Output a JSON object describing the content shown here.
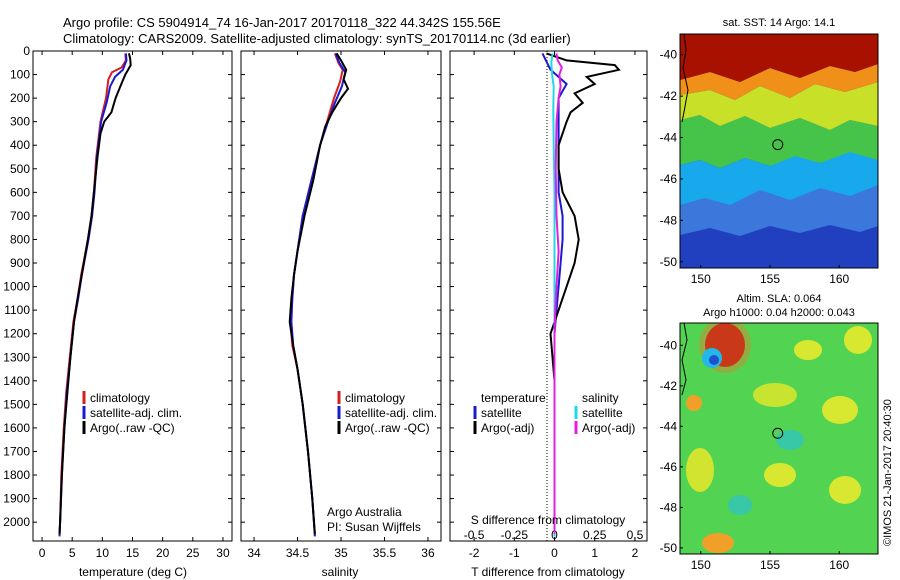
{
  "header": {
    "line1": "Argo profile: CS 5904914_74 16-Jan-2017 20170118_322 44.342S 155.56E",
    "line2": "Climatology: CARS2009. Satellite-adjusted climatology: synTS_20170114.nc (3d earlier)"
  },
  "footer": {
    "watermark": "©IMOS 21-Jan-2017 20:40:30"
  },
  "colors": {
    "climatology": "#d42020",
    "satellite": "#1a1ad0",
    "argo": "#000000",
    "sat_salinity": "#22d8e8",
    "argo_salinity_diff": "#e020e0"
  },
  "chart_data": [
    {
      "type": "line",
      "panel": "temperature",
      "xlabel": "temperature (deg C)",
      "ylabel": "",
      "xlim": [
        -1.5,
        31.5
      ],
      "ylim": [
        2080,
        0
      ],
      "xticks": [
        0,
        5,
        10,
        15,
        20,
        25,
        30
      ],
      "yticks": [
        0,
        100,
        200,
        300,
        400,
        500,
        600,
        700,
        800,
        900,
        1000,
        1100,
        1200,
        1300,
        1400,
        1500,
        1600,
        1700,
        1800,
        1900,
        2000
      ],
      "legend": [
        "climatology",
        "satellite-adj. clim.",
        "Argo(..raw -QC)"
      ],
      "series": [
        {
          "name": "climatology",
          "color": "#d42020",
          "points": [
            [
              13.8,
              10
            ],
            [
              13.9,
              40
            ],
            [
              13.2,
              70
            ],
            [
              11.6,
              90
            ],
            [
              11.0,
              120
            ],
            [
              10.6,
              200
            ],
            [
              9.7,
              300
            ],
            [
              9.0,
              450
            ],
            [
              8.6,
              600
            ],
            [
              8.2,
              700
            ],
            [
              7.6,
              800
            ],
            [
              6.5,
              950
            ],
            [
              5.9,
              1050
            ],
            [
              5.2,
              1150
            ],
            [
              4.6,
              1300
            ],
            [
              4.0,
              1450
            ],
            [
              3.6,
              1600
            ],
            [
              3.2,
              1800
            ],
            [
              3.0,
              2000
            ],
            [
              2.9,
              2060
            ]
          ]
        },
        {
          "name": "satellite-adj. clim.",
          "color": "#1a1ad0",
          "points": [
            [
              13.9,
              10
            ],
            [
              14.0,
              40
            ],
            [
              13.4,
              80
            ],
            [
              12.1,
              110
            ],
            [
              11.3,
              150
            ],
            [
              10.7,
              220
            ],
            [
              9.8,
              300
            ],
            [
              9.1,
              450
            ],
            [
              8.7,
              600
            ],
            [
              8.3,
              700
            ],
            [
              7.7,
              800
            ],
            [
              6.6,
              950
            ],
            [
              6.0,
              1050
            ],
            [
              5.3,
              1150
            ],
            [
              4.7,
              1300
            ],
            [
              4.1,
              1450
            ],
            [
              3.7,
              1600
            ],
            [
              3.3,
              1800
            ],
            [
              3.0,
              2000
            ],
            [
              2.9,
              2060
            ]
          ]
        },
        {
          "name": "Argo(..raw -QC)",
          "color": "#000000",
          "points": [
            [
              14.4,
              10
            ],
            [
              14.6,
              30
            ],
            [
              14.7,
              60
            ],
            [
              13.8,
              100
            ],
            [
              13.0,
              150
            ],
            [
              12.2,
              200
            ],
            [
              11.5,
              260
            ],
            [
              10.3,
              300
            ],
            [
              9.7,
              350
            ],
            [
              9.2,
              450
            ],
            [
              8.6,
              600
            ],
            [
              8.2,
              700
            ],
            [
              7.6,
              800
            ],
            [
              6.6,
              950
            ],
            [
              5.9,
              1050
            ],
            [
              5.3,
              1150
            ],
            [
              4.7,
              1300
            ],
            [
              4.2,
              1450
            ],
            [
              3.7,
              1600
            ],
            [
              3.3,
              1800
            ],
            [
              3.0,
              2000
            ],
            [
              2.9,
              2050
            ]
          ]
        }
      ]
    },
    {
      "type": "line",
      "panel": "salinity",
      "xlabel": "salinity",
      "ylabel": "",
      "xlim": [
        33.85,
        36.15
      ],
      "ylim": [
        2080,
        0
      ],
      "xticks": [
        34,
        34.5,
        35,
        35.5,
        36
      ],
      "legend": [
        "climatology",
        "satellite-adj. clim.",
        "Argo(..raw -QC)"
      ],
      "annotations": [
        "Argo Australia",
        "PI: Susan Wijffels"
      ],
      "series": [
        {
          "name": "climatology",
          "color": "#d42020",
          "points": [
            [
              34.93,
              10
            ],
            [
              34.97,
              50
            ],
            [
              35.02,
              80
            ],
            [
              34.99,
              130
            ],
            [
              34.92,
              200
            ],
            [
              34.84,
              300
            ],
            [
              34.76,
              400
            ],
            [
              34.66,
              550
            ],
            [
              34.56,
              700
            ],
            [
              34.5,
              850
            ],
            [
              34.46,
              950
            ],
            [
              34.44,
              1050
            ],
            [
              34.42,
              1150
            ],
            [
              34.44,
              1250
            ],
            [
              34.5,
              1350
            ],
            [
              34.56,
              1500
            ],
            [
              34.62,
              1700
            ],
            [
              34.67,
              1900
            ],
            [
              34.7,
              2060
            ]
          ]
        },
        {
          "name": "satellite-adj. clim.",
          "color": "#1a1ad0",
          "points": [
            [
              34.94,
              10
            ],
            [
              34.98,
              50
            ],
            [
              35.05,
              90
            ],
            [
              35.01,
              150
            ],
            [
              34.93,
              220
            ],
            [
              34.85,
              300
            ],
            [
              34.76,
              400
            ],
            [
              34.66,
              550
            ],
            [
              34.56,
              700
            ],
            [
              34.5,
              850
            ],
            [
              34.46,
              950
            ],
            [
              34.44,
              1050
            ],
            [
              34.43,
              1150
            ],
            [
              34.45,
              1250
            ],
            [
              34.5,
              1350
            ],
            [
              34.56,
              1500
            ],
            [
              34.62,
              1700
            ],
            [
              34.67,
              1900
            ],
            [
              34.7,
              2060
            ]
          ]
        },
        {
          "name": "Argo(..raw -QC)",
          "color": "#000000",
          "points": [
            [
              34.95,
              10
            ],
            [
              35.0,
              40
            ],
            [
              35.06,
              80
            ],
            [
              35.03,
              120
            ],
            [
              35.08,
              160
            ],
            [
              35.0,
              200
            ],
            [
              34.9,
              260
            ],
            [
              34.82,
              320
            ],
            [
              34.76,
              400
            ],
            [
              34.68,
              550
            ],
            [
              34.58,
              700
            ],
            [
              34.5,
              850
            ],
            [
              34.46,
              950
            ],
            [
              34.43,
              1050
            ],
            [
              34.41,
              1150
            ],
            [
              34.45,
              1250
            ],
            [
              34.5,
              1350
            ],
            [
              34.56,
              1500
            ],
            [
              34.62,
              1700
            ],
            [
              34.67,
              1900
            ],
            [
              34.7,
              2050
            ]
          ]
        }
      ]
    },
    {
      "type": "line",
      "panel": "difference",
      "xlabel": "T difference from climatology",
      "xlabel_top": "S difference from climatology",
      "xlim": [
        -2.6,
        2.3
      ],
      "xlim_S": [
        -0.65,
        0.575
      ],
      "ylim": [
        2080,
        0
      ],
      "xticks": [
        -2,
        -1,
        0,
        1,
        2
      ],
      "xticks_S": [
        "-0.5",
        "-0.25",
        "0",
        "0.25",
        "0.5"
      ],
      "legend_temperature": [
        "temperature",
        "satellite",
        "Argo(-adj)"
      ],
      "legend_salinity": [
        "salinity",
        "satellite",
        "Argo(-adj)"
      ],
      "series": [
        {
          "name": "temperature satellite",
          "color": "#1a1ad0",
          "points": [
            [
              -0.3,
              10
            ],
            [
              -0.1,
              80
            ],
            [
              0.3,
              140
            ],
            [
              0.1,
              200
            ],
            [
              0.1,
              300
            ],
            [
              0.1,
              500
            ],
            [
              0.1,
              600
            ],
            [
              0.2,
              700
            ],
            [
              0.2,
              800
            ],
            [
              0.15,
              900
            ],
            [
              0.1,
              1000
            ],
            [
              0.05,
              1100
            ],
            [
              0,
              1200
            ],
            [
              0,
              1500
            ],
            [
              0,
              2060
            ]
          ]
        },
        {
          "name": "temperature Argo(-adj)",
          "color": "#000000",
          "points": [
            [
              -0.2,
              10
            ],
            [
              0.3,
              40
            ],
            [
              1.5,
              60
            ],
            [
              1.6,
              80
            ],
            [
              0.8,
              110
            ],
            [
              1.0,
              140
            ],
            [
              0.5,
              180
            ],
            [
              0.7,
              220
            ],
            [
              0.4,
              260
            ],
            [
              0.3,
              300
            ],
            [
              0.1,
              400
            ],
            [
              0.1,
              500
            ],
            [
              0.2,
              600
            ],
            [
              0.5,
              700
            ],
            [
              0.6,
              800
            ],
            [
              0.5,
              900
            ],
            [
              0.3,
              1000
            ],
            [
              0.1,
              1100
            ],
            [
              -0.1,
              1200
            ],
            [
              -0.05,
              1300
            ],
            [
              0,
              1400
            ],
            [
              0,
              1600
            ],
            [
              0,
              2050
            ]
          ]
        },
        {
          "name": "salinity satellite",
          "color": "#22d8e8",
          "points": [
            [
              -0.05,
              10
            ],
            [
              -0.08,
              50
            ],
            [
              -0.06,
              100
            ],
            [
              -0.02,
              150
            ],
            [
              -0.03,
              250
            ],
            [
              -0.02,
              400
            ],
            [
              0,
              600
            ],
            [
              0,
              1000
            ],
            [
              0,
              1500
            ],
            [
              0,
              2060
            ]
          ]
        },
        {
          "name": "salinity Argo(-adj)",
          "color": "#e020e0",
          "points": [
            [
              0.05,
              10
            ],
            [
              0.08,
              40
            ],
            [
              0.18,
              70
            ],
            [
              0.12,
              100
            ],
            [
              0.15,
              150
            ],
            [
              0.1,
              200
            ],
            [
              0.05,
              300
            ],
            [
              0.03,
              500
            ],
            [
              0.05,
              700
            ],
            [
              0.1,
              850
            ],
            [
              0.05,
              1000
            ],
            [
              0.02,
              1100
            ],
            [
              0.0,
              1200
            ],
            [
              0.0,
              1600
            ],
            [
              0,
              2050
            ]
          ]
        }
      ]
    },
    {
      "type": "heatmap",
      "panel": "sst_map",
      "title": "sat. SST: 14 Argo: 14.1",
      "xlim": [
        148.5,
        162.8
      ],
      "ylim": [
        -50.3,
        -39.0
      ],
      "xticks": [
        150,
        155,
        160
      ],
      "yticks": [
        -40,
        -42,
        -44,
        -46,
        -48,
        -50
      ],
      "argo_position": [
        155.56,
        -44.342
      ]
    },
    {
      "type": "heatmap",
      "panel": "sla_map",
      "title": "Altim. SLA: 0.064",
      "subtitle": "Argo h1000: 0.04 h2000: 0.043",
      "xlim": [
        148.5,
        162.8
      ],
      "ylim": [
        -50.3,
        -38.9
      ],
      "xticks": [
        150,
        155,
        160
      ],
      "yticks": [
        -40,
        -42,
        -44,
        -46,
        -48,
        -50
      ],
      "argo_position": [
        155.56,
        -44.342
      ]
    }
  ]
}
